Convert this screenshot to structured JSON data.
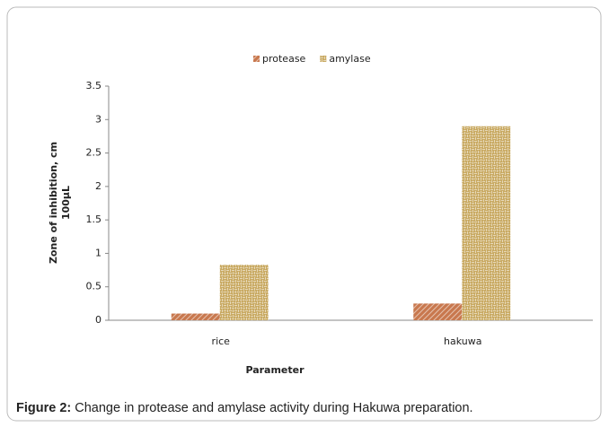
{
  "chart_data": {
    "type": "bar",
    "categories": [
      "rice",
      "hakuwa"
    ],
    "series": [
      {
        "name": "protease",
        "color": "#c8784e",
        "values": [
          0.1,
          0.25
        ]
      },
      {
        "name": "amylase",
        "color": "#c9aa63",
        "values": [
          0.83,
          2.9
        ]
      }
    ],
    "ylim": [
      0,
      3.5
    ],
    "yticks": [
      0,
      0.5,
      1,
      1.5,
      2,
      2.5,
      3,
      3.5
    ],
    "ylabel": [
      "Zone of inhibition, cm",
      "100μL"
    ],
    "xlabel": "Parameter",
    "legend": "top"
  },
  "caption": {
    "label": "Figure 2:",
    "text": "Change in protease and amylase activity during Hakuwa preparation."
  }
}
